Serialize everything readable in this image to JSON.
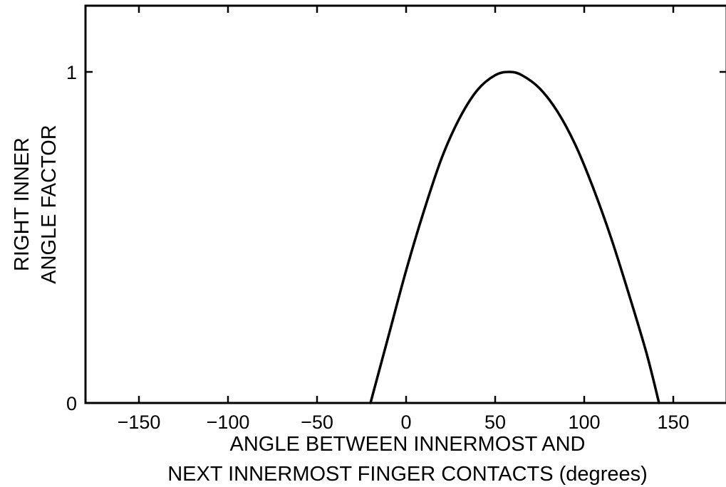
{
  "chart_data": {
    "type": "line",
    "title": "",
    "xlabel": [
      "ANGLE BETWEEN INNERMOST AND",
      "NEXT INNERMOST FINGER CONTACTS (degrees)"
    ],
    "ylabel": [
      "RIGHT INNER",
      "ANGLE FACTOR"
    ],
    "xlim": [
      -180,
      180
    ],
    "ylim": [
      0,
      1.2
    ],
    "xticks": [
      -150,
      -100,
      -50,
      0,
      50,
      100,
      150
    ],
    "xtick_labels": [
      "−150",
      "−100",
      "−50",
      "0",
      "50",
      "100",
      "150"
    ],
    "yticks": [
      0,
      1
    ],
    "ytick_labels": [
      "0",
      "1"
    ],
    "grid": false,
    "series": [
      {
        "x": [
          -20,
          -10,
          0,
          10,
          20,
          30,
          40,
          50,
          58,
          65,
          75,
          85,
          95,
          105,
          115,
          125,
          135,
          142
        ],
        "y": [
          0,
          0.2,
          0.4,
          0.58,
          0.74,
          0.86,
          0.945,
          0.99,
          1.0,
          0.99,
          0.95,
          0.88,
          0.78,
          0.65,
          0.5,
          0.33,
          0.15,
          0
        ]
      }
    ],
    "line_color": "#000000"
  }
}
